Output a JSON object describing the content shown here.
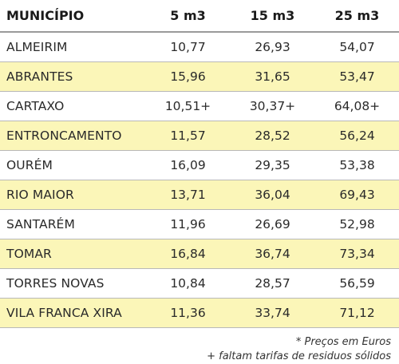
{
  "table": {
    "headers": [
      "MUNICÍPIO",
      "5 m3",
      "15 m3",
      "25 m3"
    ],
    "rows": [
      {
        "name": "ALMEIRIM",
        "v5": "10,77",
        "v15": "26,93",
        "v25": "54,07"
      },
      {
        "name": "ABRANTES",
        "v5": "15,96",
        "v15": "31,65",
        "v25": "53,47"
      },
      {
        "name": "CARTAXO",
        "v5": "10,51+",
        "v15": "30,37+",
        "v25": "64,08+"
      },
      {
        "name": "ENTRONCAMENTO",
        "v5": "11,57",
        "v15": "28,52",
        "v25": "56,24"
      },
      {
        "name": "OURÉM",
        "v5": "16,09",
        "v15": "29,35",
        "v25": "53,38"
      },
      {
        "name": "RIO MAIOR",
        "v5": "13,71",
        "v15": "36,04",
        "v25": "69,43"
      },
      {
        "name": "SANTARÉM",
        "v5": "11,96",
        "v15": "26,69",
        "v25": "52,98"
      },
      {
        "name": "TOMAR",
        "v5": "16,84",
        "v15": "36,74",
        "v25": "73,34"
      },
      {
        "name": "TORRES NOVAS",
        "v5": "10,84",
        "v15": "28,57",
        "v25": "56,59"
      },
      {
        "name": "VILA FRANCA XIRA",
        "v5": "11,36",
        "v15": "33,74",
        "v25": "71,12"
      }
    ]
  },
  "notes": {
    "line1": "* Preços em Euros",
    "line2": "+ faltam tarifas de residuos sólidos"
  },
  "colors": {
    "shaded_row": "#fbf6b8",
    "plain_row": "#ffffff"
  }
}
